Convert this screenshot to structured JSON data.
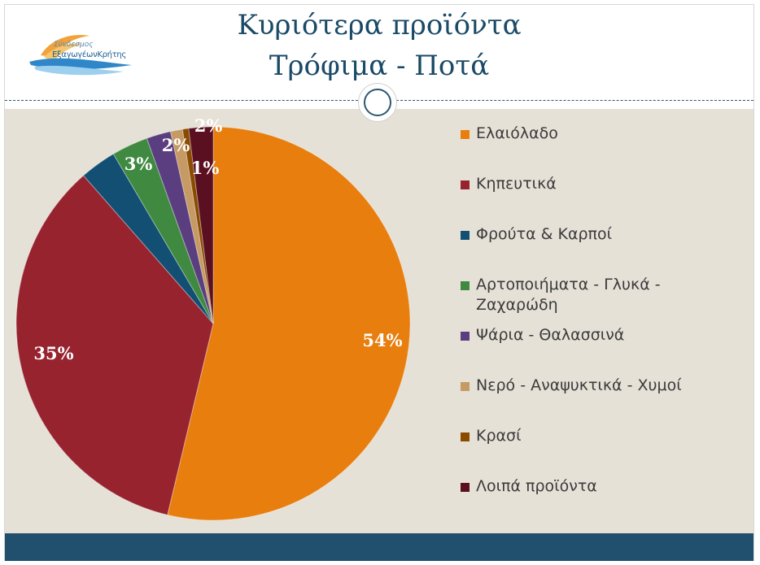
{
  "slide": {
    "title_line1": "Κυριότερα προϊόντα",
    "title_line2": "Τρόφιμα - Ποτά",
    "logo": {
      "line1": "Σύνδεσμος",
      "line2": "ΕξαγωγέωνΚρήτης"
    }
  },
  "colors": {
    "title": "#1a4a66",
    "background": "#e6e1d7",
    "footer": "#21506e"
  },
  "chart_data": {
    "type": "pie",
    "start_angle_deg": 0,
    "direction": "clockwise",
    "slices": [
      {
        "label": "Ελαιόλαδο",
        "value": 54,
        "display": "54%",
        "color": "#e87e0e",
        "label_color": "#ffffff"
      },
      {
        "label": "Κηπευτικά",
        "value": 35,
        "display": "35%",
        "color": "#97232f",
        "label_color": "#ffffff"
      },
      {
        "label": "Φρούτα & Καρποί",
        "value": 3,
        "display": "3%",
        "color": "#124f72",
        "label_color": "#ffffff"
      },
      {
        "label": "Αρτοποιήματα - Γλυκά - Ζαχαρώδη",
        "value": 3,
        "display": "",
        "color": "#3f8a40",
        "label_color": "#ffffff"
      },
      {
        "label": "Ψάρια - Θαλασσινά",
        "value": 2,
        "display": "2%",
        "color": "#5b3e80",
        "label_color": "#ffffff"
      },
      {
        "label": "Νερό - Αναψυκτικά - Χυμοί",
        "value": 1,
        "display": "",
        "color": "#c69a64",
        "label_color": "#ffffff"
      },
      {
        "label": "Κρασί",
        "value": 0.5,
        "display": "1%",
        "color": "#8a4a00",
        "label_color": "#ffffff"
      },
      {
        "label": "Λοιπά προϊόντα",
        "value": 2,
        "display": "2%",
        "color": "#5a1020",
        "label_color": "#ffffff"
      }
    ],
    "legend_position": "right"
  }
}
